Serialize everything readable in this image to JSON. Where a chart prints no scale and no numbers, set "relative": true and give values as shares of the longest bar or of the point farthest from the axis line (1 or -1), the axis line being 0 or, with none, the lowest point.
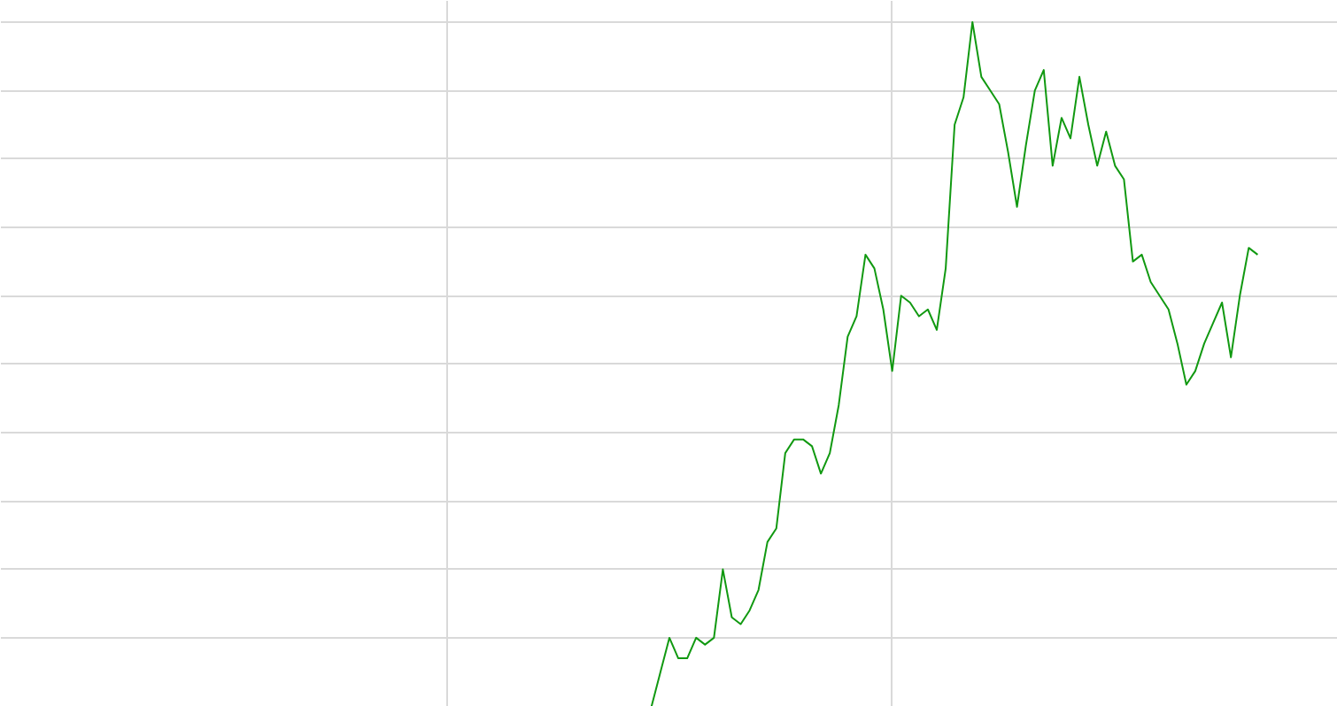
{
  "chart_data": {
    "type": "line",
    "relative": true,
    "grid": true,
    "categories": [
      null,
      null,
      null,
      null,
      null,
      null,
      null,
      null,
      null,
      null,
      null,
      null,
      null,
      null,
      null,
      null,
      null,
      null,
      null,
      null,
      null,
      null,
      null,
      null,
      null,
      null,
      null,
      null,
      null,
      null,
      null,
      null,
      null,
      null,
      null,
      null,
      null,
      null,
      null,
      null,
      null,
      null,
      null,
      null,
      null,
      null,
      null,
      null,
      null,
      null,
      null,
      null,
      null,
      null,
      null,
      null,
      null,
      null,
      null,
      null,
      null,
      null,
      null,
      null,
      null,
      null,
      null,
      null,
      null,
      null,
      null,
      null,
      null,
      null,
      null,
      null,
      null,
      null,
      null,
      null,
      null,
      null,
      null,
      null,
      null,
      null,
      null,
      null,
      null,
      null,
      null,
      null,
      null,
      null,
      null,
      null,
      null,
      null,
      null,
      null,
      null,
      null,
      null,
      null,
      null,
      null,
      null,
      null,
      null,
      null,
      null,
      null,
      null,
      null,
      null,
      null,
      null,
      null,
      null,
      null,
      null,
      null,
      null,
      null,
      null,
      null,
      null,
      null,
      null,
      null,
      null,
      null,
      null,
      null,
      null,
      null,
      null,
      null,
      null,
      null,
      null,
      null,
      null,
      null,
      null,
      null,
      null,
      null,
      null,
      null,
      null
    ],
    "series": [
      {
        "color": "#119911",
        "values": [
          null,
          null,
          null,
          null,
          null,
          null,
          null,
          null,
          null,
          null,
          null,
          null,
          null,
          null,
          null,
          null,
          null,
          null,
          null,
          null,
          null,
          null,
          null,
          null,
          null,
          null,
          null,
          null,
          null,
          null,
          null,
          null,
          null,
          null,
          null,
          null,
          null,
          null,
          null,
          null,
          null,
          null,
          null,
          null,
          null,
          null,
          null,
          null,
          null,
          null,
          null,
          null,
          null,
          null,
          null,
          null,
          null,
          null,
          null,
          null,
          null,
          null,
          null,
          null,
          null,
          null,
          null,
          null,
          null,
          null,
          null,
          null,
          null,
          0,
          0.05,
          0.1,
          0.07,
          0.07,
          0.1,
          0.09,
          0.1,
          0.2,
          0.13,
          0.12,
          0.14,
          0.17,
          0.24,
          0.26,
          0.37,
          0.39,
          0.39,
          0.38,
          0.34,
          0.37,
          0.44,
          0.54,
          0.57,
          0.66,
          0.64,
          0.58,
          0.49,
          0.6,
          0.59,
          0.57,
          0.58,
          0.55,
          0.64,
          0.85,
          0.89,
          1,
          0.92,
          0.9,
          0.88,
          0.81,
          0.73,
          0.82,
          0.9,
          0.93,
          0.79,
          0.86,
          0.83,
          0.92,
          0.85,
          0.79,
          0.84,
          0.79,
          0.77,
          0.65,
          0.66,
          0.62,
          0.6,
          0.58,
          0.53,
          0.47,
          0.49,
          0.53,
          0.56,
          0.59,
          0.51,
          0.6,
          0.67,
          0.66,
          null,
          null,
          null,
          null,
          null,
          null,
          null,
          null,
          null
        ]
      }
    ]
  }
}
